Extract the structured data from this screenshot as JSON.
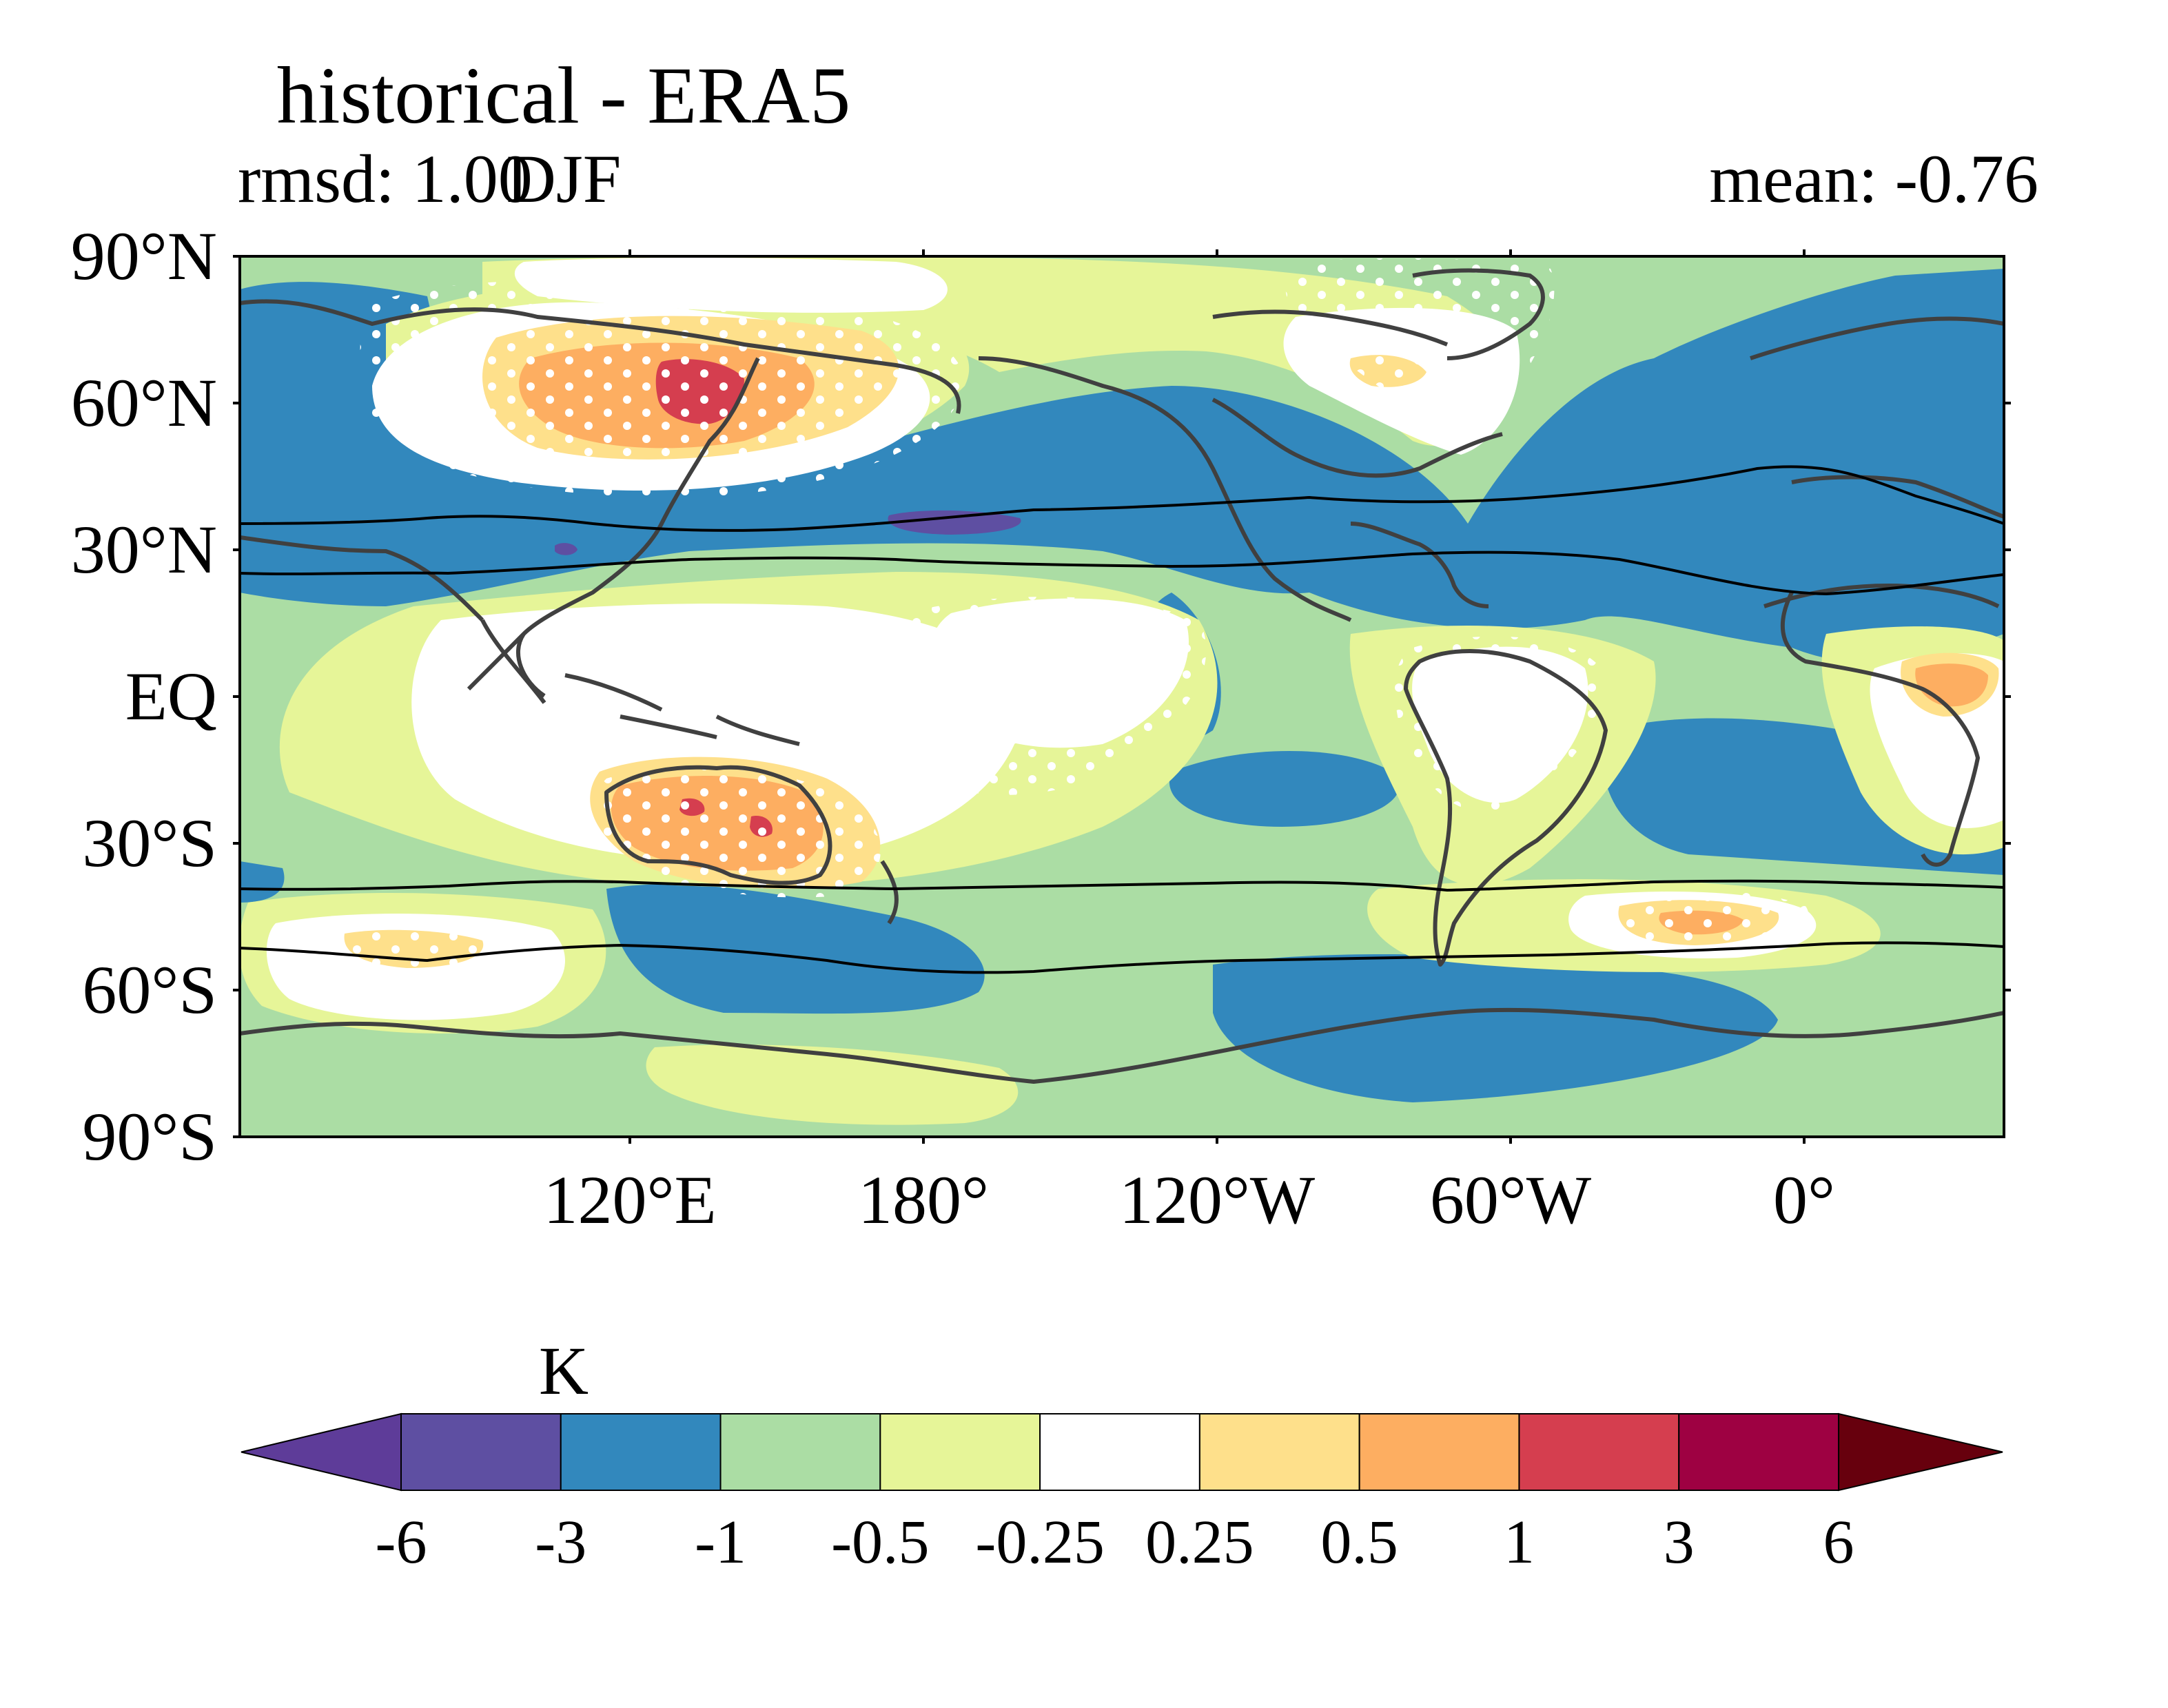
{
  "title": "historical - ERA5",
  "subtitle_left": "rmsd: 1.00",
  "subtitle_center": "DJF",
  "subtitle_right": "mean: -0.76",
  "map": {
    "lat_ticks": [
      "90°N",
      "60°N",
      "30°N",
      "EQ",
      "30°S",
      "60°S",
      "90°S"
    ],
    "lon_ticks": [
      "120°E",
      "180°",
      "120°W",
      "60°W",
      "0°"
    ],
    "land_color": "#404040",
    "stipple_color": "#ffffff",
    "jet_line_color": "#000000"
  },
  "colorbar": {
    "label": "K",
    "ticks": [
      "-6",
      "-3",
      "-1",
      "-0.5",
      "-0.25",
      "0.25",
      "0.5",
      "1",
      "3",
      "6"
    ],
    "colors": [
      "#5e3c99",
      "#5e4fa2",
      "#3288bd",
      "#abdda4",
      "#e6f598",
      "#ffffff",
      "#fee08b",
      "#fdae61",
      "#d53e4f",
      "#9e0142",
      "#67000d"
    ]
  }
}
